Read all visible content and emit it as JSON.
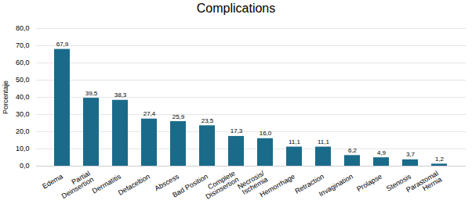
{
  "chart_data": {
    "type": "bar",
    "title": "Complications",
    "ylabel": "Porcentaje",
    "categories": [
      "Edema",
      "Partial\nDeinsertion",
      "Dermatitis",
      "Defaceltion",
      "Abscess",
      "Bad Position",
      "Complete\nDisinsertion",
      "Necrosis/\nIschemia",
      "Hemorrhage",
      "Retraction",
      "Invagination",
      "Prolapse",
      "Stenosis",
      "Parastomal\nHernia"
    ],
    "values": [
      67.9,
      39.5,
      38.3,
      27.4,
      25.9,
      23.5,
      17.3,
      16.0,
      11.1,
      11.1,
      6.2,
      4.9,
      3.7,
      1.2
    ],
    "value_labels": [
      "67,9",
      "39,5",
      "38,3",
      "27,4",
      "25,9",
      "23,5",
      "17,3",
      "16,0",
      "11,1",
      "11,1",
      "6,2",
      "4,9",
      "3,7",
      "1,2"
    ],
    "data_labels": true,
    "color": "#1a6b8a",
    "ylim": [
      0,
      80
    ],
    "yticks": [
      {
        "value": 0,
        "label": "0,0"
      },
      {
        "value": 10,
        "label": "10,0"
      },
      {
        "value": 20,
        "label": "20,0"
      },
      {
        "value": 30,
        "label": "30,0"
      },
      {
        "value": 40,
        "label": "40,0"
      },
      {
        "value": 50,
        "label": "50,0"
      },
      {
        "value": 60,
        "label": "60,0"
      },
      {
        "value": 70,
        "label": "70,0"
      },
      {
        "value": 80,
        "label": "80,0"
      }
    ],
    "grid": true
  }
}
